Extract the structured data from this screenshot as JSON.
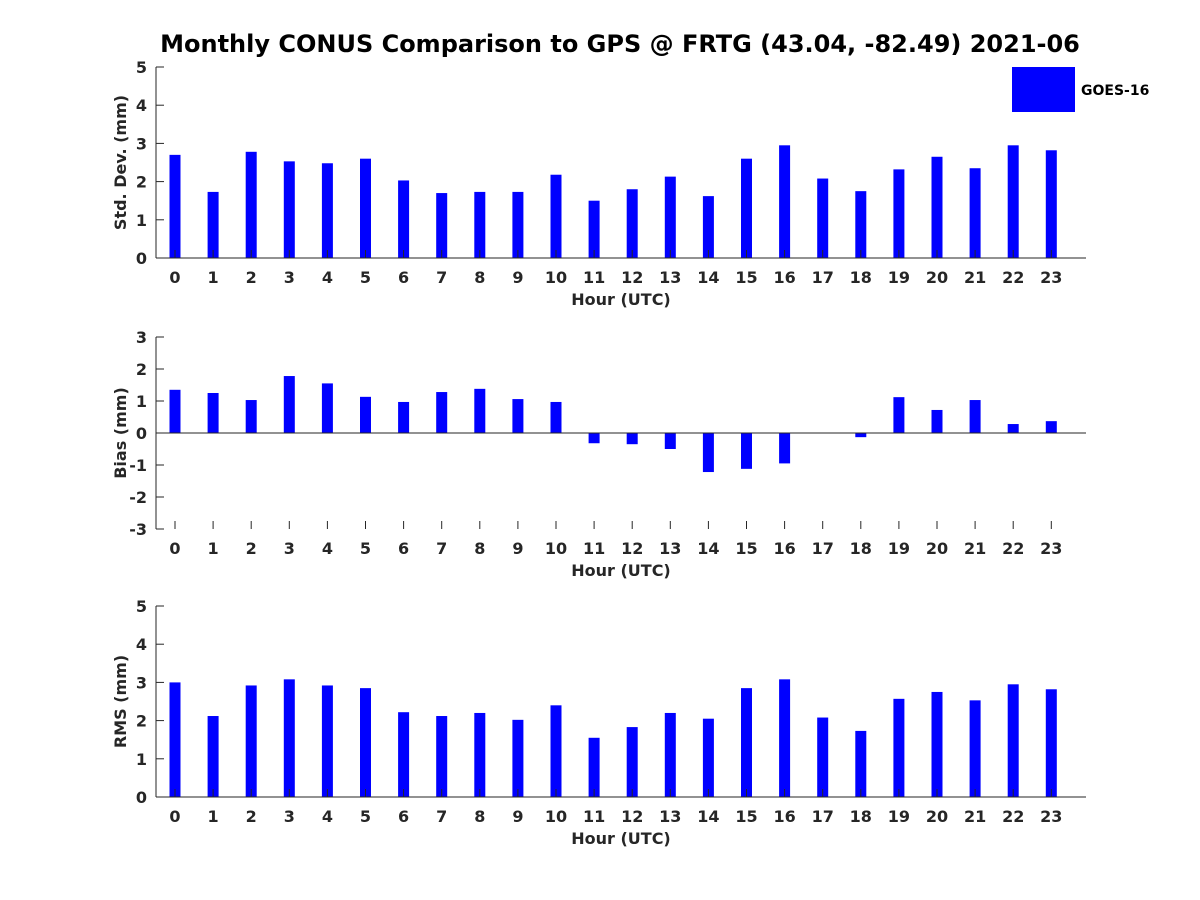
{
  "title": "Monthly CONUS Comparison to GPS @ FRTG (43.04, -82.49) 2021-06",
  "legend": {
    "label": "GOES-16",
    "color": "#0000ff"
  },
  "chart_data": [
    {
      "type": "bar",
      "series_name": "GOES-16",
      "categories": [
        "0",
        "1",
        "2",
        "3",
        "4",
        "5",
        "6",
        "7",
        "8",
        "9",
        "10",
        "11",
        "12",
        "13",
        "14",
        "15",
        "16",
        "17",
        "18",
        "19",
        "20",
        "21",
        "22",
        "23"
      ],
      "values": [
        2.7,
        1.73,
        2.78,
        2.53,
        2.48,
        2.6,
        2.03,
        1.7,
        1.73,
        1.73,
        2.18,
        1.5,
        1.8,
        2.13,
        1.62,
        2.6,
        2.95,
        2.08,
        1.75,
        2.32,
        2.65,
        2.35,
        2.95,
        2.82
      ],
      "xlabel": "Hour (UTC)",
      "ylabel": "Std. Dev. (mm)",
      "ylim": [
        0,
        5
      ],
      "yticks": [
        "0",
        "1",
        "2",
        "3",
        "4",
        "5"
      ],
      "color": "#0000ff"
    },
    {
      "type": "bar",
      "series_name": "GOES-16",
      "categories": [
        "0",
        "1",
        "2",
        "3",
        "4",
        "5",
        "6",
        "7",
        "8",
        "9",
        "10",
        "11",
        "12",
        "13",
        "14",
        "15",
        "16",
        "17",
        "18",
        "19",
        "20",
        "21",
        "22",
        "23"
      ],
      "values": [
        1.35,
        1.25,
        1.03,
        1.78,
        1.55,
        1.13,
        0.97,
        1.28,
        1.38,
        1.06,
        0.97,
        -0.32,
        -0.35,
        -0.5,
        -1.22,
        -1.12,
        -0.95,
        0.0,
        -0.13,
        1.12,
        0.72,
        1.03,
        0.28,
        0.37
      ],
      "xlabel": "Hour (UTC)",
      "ylabel": "Bias (mm)",
      "ylim": [
        -3,
        3
      ],
      "yticks": [
        "-3",
        "-2",
        "-1",
        "0",
        "1",
        "2",
        "3"
      ],
      "color": "#0000ff"
    },
    {
      "type": "bar",
      "series_name": "GOES-16",
      "categories": [
        "0",
        "1",
        "2",
        "3",
        "4",
        "5",
        "6",
        "7",
        "8",
        "9",
        "10",
        "11",
        "12",
        "13",
        "14",
        "15",
        "16",
        "17",
        "18",
        "19",
        "20",
        "21",
        "22",
        "23"
      ],
      "values": [
        3.0,
        2.12,
        2.92,
        3.08,
        2.92,
        2.85,
        2.22,
        2.12,
        2.2,
        2.02,
        2.4,
        1.55,
        1.83,
        2.2,
        2.05,
        2.85,
        3.08,
        2.08,
        1.73,
        2.57,
        2.75,
        2.53,
        2.95,
        2.82
      ],
      "xlabel": "Hour (UTC)",
      "ylabel": "RMS (mm)",
      "ylim": [
        0,
        5
      ],
      "yticks": [
        "0",
        "1",
        "2",
        "3",
        "4",
        "5"
      ],
      "color": "#0000ff"
    }
  ]
}
